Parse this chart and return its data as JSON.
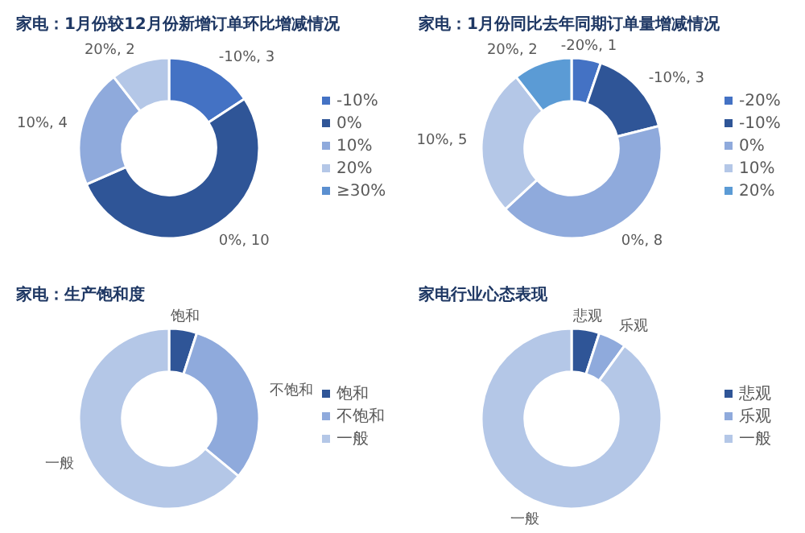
{
  "chart_data": [
    {
      "type": "donut",
      "title": "家电：1月份较12月份新增订单环比增减情况",
      "categories": [
        "-10%",
        "0%",
        "10%",
        "20%",
        "≥30%"
      ],
      "values": [
        3,
        10,
        4,
        2,
        0
      ],
      "colors": [
        "#4472c4",
        "#2f5597",
        "#8faadc",
        "#b4c7e7",
        "#5b8fd0"
      ],
      "value_labels": [
        "-10%, 3",
        "0%, 10",
        "10%, 4",
        "20%, 2",
        null
      ],
      "legend": "right"
    },
    {
      "type": "donut",
      "title": "家电：1月份同比去年同期订单量增减情况",
      "categories": [
        "-20%",
        "-10%",
        "0%",
        "10%",
        "20%"
      ],
      "values": [
        1,
        3,
        8,
        5,
        2
      ],
      "colors": [
        "#4472c4",
        "#2f5597",
        "#8faadc",
        "#b4c7e7",
        "#5b9bd5"
      ],
      "value_labels": [
        "-20%, 1",
        "-10%, 3",
        "0%, 8",
        "10%, 5",
        "20%, 2"
      ],
      "legend": "right"
    },
    {
      "type": "donut",
      "title": "家电：生产饱和度",
      "categories": [
        "饱和",
        "不饱和",
        "一般"
      ],
      "values": [
        5,
        31,
        64
      ],
      "colors": [
        "#2f5597",
        "#8faadc",
        "#b4c7e7"
      ],
      "value_labels": [
        "饱和",
        "不饱和",
        "一般"
      ],
      "legend": "right"
    },
    {
      "type": "donut",
      "title": "家电行业心态表现",
      "categories": [
        "悲观",
        "乐观",
        "一般"
      ],
      "values": [
        5,
        5,
        90
      ],
      "colors": [
        "#2f5597",
        "#8faadc",
        "#b4c7e7"
      ],
      "value_labels": [
        "悲观",
        "乐观",
        "一般"
      ],
      "legend": "right"
    }
  ]
}
